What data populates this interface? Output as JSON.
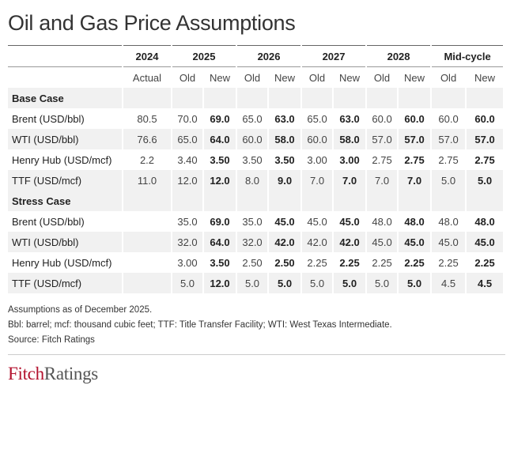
{
  "title": "Oil and Gas Price Assumptions",
  "table": {
    "years": [
      "2024",
      "2025",
      "2026",
      "2027",
      "2028",
      "Mid-cycle"
    ],
    "subheaders": [
      "Actual",
      "Old",
      "New",
      "Old",
      "New",
      "Old",
      "New",
      "Old",
      "New",
      "Old",
      "New"
    ],
    "base_case": {
      "label": "Base Case",
      "rows": [
        {
          "label": "Brent (USD/bbl)",
          "values": [
            "80.5",
            "70.0",
            "69.0",
            "65.0",
            "63.0",
            "65.0",
            "63.0",
            "60.0",
            "60.0",
            "60.0",
            "60.0"
          ]
        },
        {
          "label": "WTI (USD/bbl)",
          "values": [
            "76.6",
            "65.0",
            "64.0",
            "60.0",
            "58.0",
            "60.0",
            "58.0",
            "57.0",
            "57.0",
            "57.0",
            "57.0"
          ]
        },
        {
          "label": "Henry Hub (USD/mcf)",
          "values": [
            "2.2",
            "3.40",
            "3.50",
            "3.50",
            "3.50",
            "3.00",
            "3.00",
            "2.75",
            "2.75",
            "2.75",
            "2.75"
          ]
        },
        {
          "label": "TTF (USD/mcf)",
          "values": [
            "11.0",
            "12.0",
            "12.0",
            "8.0",
            "9.0",
            "7.0",
            "7.0",
            "7.0",
            "7.0",
            "5.0",
            "5.0"
          ]
        }
      ]
    },
    "stress_case": {
      "label": "Stress Case",
      "rows": [
        {
          "label": "Brent (USD/bbl)",
          "values": [
            "",
            "35.0",
            "69.0",
            "35.0",
            "45.0",
            "45.0",
            "45.0",
            "48.0",
            "48.0",
            "48.0",
            "48.0"
          ]
        },
        {
          "label": "WTI (USD/bbl)",
          "values": [
            "",
            "32.0",
            "64.0",
            "32.0",
            "42.0",
            "42.0",
            "42.0",
            "45.0",
            "45.0",
            "45.0",
            "45.0"
          ]
        },
        {
          "label": "Henry Hub (USD/mcf)",
          "values": [
            "",
            "3.00",
            "3.50",
            "2.50",
            "2.50",
            "2.25",
            "2.25",
            "2.25",
            "2.25",
            "2.25",
            "2.25"
          ]
        },
        {
          "label": "TTF (USD/mcf)",
          "values": [
            "",
            "5.0",
            "12.0",
            "5.0",
            "5.0",
            "5.0",
            "5.0",
            "5.0",
            "5.0",
            "4.5",
            "4.5"
          ]
        }
      ]
    }
  },
  "notes": [
    "Assumptions as of December 2025.",
    "Bbl: barrel; mcf: thousand cubic feet; TTF: Title Transfer Facility; WTI: West Texas Intermediate.",
    "Source: Fitch Ratings"
  ],
  "logo": {
    "part1": "Fitch",
    "part2": "Ratings"
  },
  "colors": {
    "brand_red": "#b3122e",
    "row_shade": "#f1f1f1"
  }
}
